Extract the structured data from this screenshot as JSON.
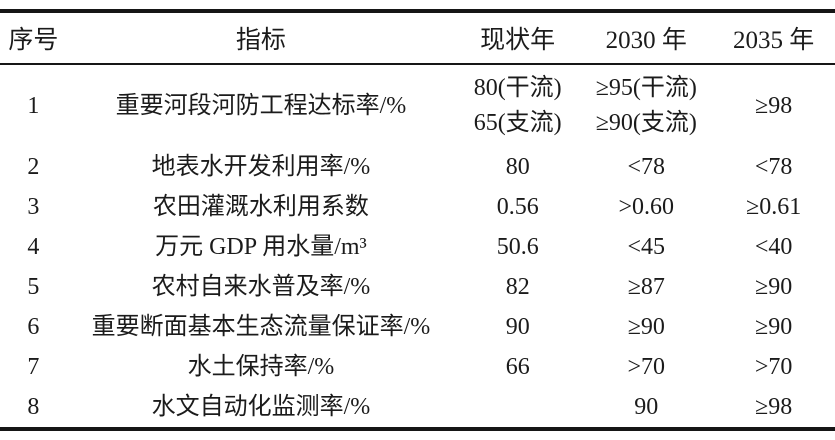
{
  "colors": {
    "background": "#ffffff",
    "text": "#1b1b1b",
    "rule": "#161616"
  },
  "table": {
    "headers": [
      "序号",
      "指标",
      "现状年",
      "2030 年",
      "2035 年"
    ],
    "rows": [
      {
        "no": "1",
        "indicator": "重要河段河防工程达标率/%",
        "current": "80(干流)\n65(支流)",
        "y2030": "≥95(干流)\n≥90(支流)",
        "y2035": "≥98"
      },
      {
        "no": "2",
        "indicator": "地表水开发利用率/%",
        "current": "80",
        "y2030": "<78",
        "y2035": "<78"
      },
      {
        "no": "3",
        "indicator": "农田灌溉水利用系数",
        "current": "0.56",
        "y2030": ">0.60",
        "y2035": "≥0.61"
      },
      {
        "no": "4",
        "indicator": "万元 GDP 用水量/m³",
        "current": "50.6",
        "y2030": "<45",
        "y2035": "<40"
      },
      {
        "no": "5",
        "indicator": "农村自来水普及率/%",
        "current": "82",
        "y2030": "≥87",
        "y2035": "≥90"
      },
      {
        "no": "6",
        "indicator": "重要断面基本生态流量保证率/%",
        "current": "90",
        "y2030": "≥90",
        "y2035": "≥90"
      },
      {
        "no": "7",
        "indicator": "水土保持率/%",
        "current": "66",
        "y2030": ">70",
        "y2035": ">70"
      },
      {
        "no": "8",
        "indicator": "水文自动化监测率/%",
        "current": "",
        "y2030": "90",
        "y2035": "≥98"
      }
    ]
  }
}
